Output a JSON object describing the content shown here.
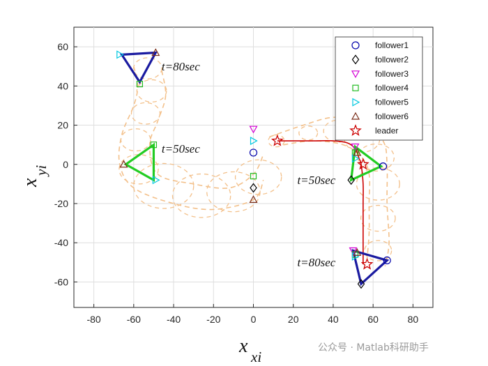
{
  "chart_data": {
    "type": "line",
    "title": "",
    "xlabel": {
      "base": "x",
      "sub": "xi"
    },
    "ylabel": {
      "base": "x",
      "sub": "yi"
    },
    "xlim": [
      -90,
      90
    ],
    "ylim": [
      -73,
      70
    ],
    "xticks": [
      -80,
      -60,
      -40,
      -20,
      0,
      20,
      40,
      60,
      80
    ],
    "yticks": [
      -60,
      -40,
      -20,
      0,
      20,
      40,
      60
    ],
    "grid": true,
    "legend": {
      "placement": "top-right",
      "entries": [
        {
          "name": "follower1",
          "marker": "circle",
          "color": "#0000aa"
        },
        {
          "name": "follower2",
          "marker": "diamond",
          "color": "#000000"
        },
        {
          "name": "follower3",
          "marker": "triangle-down",
          "color": "#d400d4"
        },
        {
          "name": "follower4",
          "marker": "square",
          "color": "#22bb22"
        },
        {
          "name": "follower5",
          "marker": "triangle-right",
          "color": "#00c8e0"
        },
        {
          "name": "follower6",
          "marker": "triangle-up",
          "color": "#7a2e1a"
        },
        {
          "name": "leader",
          "marker": "star",
          "color": "#cc0000"
        }
      ]
    },
    "leader_path": [
      [
        12,
        12
      ],
      [
        20,
        12
      ],
      [
        30,
        12
      ],
      [
        40,
        12
      ],
      [
        47,
        11
      ],
      [
        51,
        8
      ],
      [
        53,
        3
      ],
      [
        54,
        0
      ],
      [
        55,
        -10
      ],
      [
        55,
        -20
      ],
      [
        55,
        -30
      ],
      [
        55,
        -40
      ],
      [
        55,
        -51
      ]
    ],
    "leader_positions": [
      [
        12,
        12
      ],
      [
        55,
        0
      ],
      [
        57,
        -51
      ]
    ],
    "initial_positions": {
      "follower1": [
        0,
        6
      ],
      "follower2": [
        0,
        -12
      ],
      "follower3": [
        0,
        18
      ],
      "follower4": [
        0,
        -6
      ],
      "follower5": [
        0,
        12
      ],
      "follower6": [
        0,
        -18
      ]
    },
    "formations": [
      {
        "label": "t=50sec",
        "color": "#22cc22",
        "vertices": [
          [
            64,
            -1
          ],
          [
            49,
            -8
          ],
          [
            51,
            9
          ]
        ],
        "markers": {
          "follower1": [
            65,
            -1
          ],
          "follower2": [
            49,
            -8
          ],
          "follower3": [
            51,
            9
          ],
          "follower4": [
            51,
            6
          ],
          "follower5": [
            51,
            3
          ],
          "follower6": [
            52,
            6
          ]
        },
        "label_pos": [
          22,
          -10
        ]
      },
      {
        "label": "t=80sec",
        "color": "#1a1aa0",
        "vertices": [
          [
            67,
            -49
          ],
          [
            54,
            -61
          ],
          [
            50,
            -44
          ]
        ],
        "markers": {
          "follower1": [
            67,
            -49
          ],
          "follower2": [
            54,
            -61
          ],
          "follower3": [
            50,
            -44
          ],
          "follower4": [
            51,
            -46
          ],
          "follower5": [
            51,
            -47
          ],
          "follower6": [
            52,
            -45
          ]
        },
        "label_pos": [
          22,
          -52
        ]
      },
      {
        "label": "t=50sec",
        "color": "#22cc22",
        "vertices": [
          [
            -64,
            0
          ],
          [
            -50,
            10
          ],
          [
            -50,
            -8
          ]
        ],
        "markers": {
          "follower4": [
            -50,
            10
          ],
          "follower5": [
            -49,
            -8
          ],
          "follower6": [
            -65,
            0
          ]
        },
        "label_pos": [
          -46,
          6
        ]
      },
      {
        "label": "t=80sec",
        "color": "#1a1aa0",
        "vertices": [
          [
            -66,
            56
          ],
          [
            -49,
            57
          ],
          [
            -57,
            42
          ]
        ],
        "markers": {
          "follower4": [
            -57,
            41
          ],
          "follower5": [
            -67,
            56
          ],
          "follower6": [
            -49,
            57
          ]
        },
        "label_pos": [
          -46,
          48
        ]
      }
    ],
    "left_envelope": {
      "outer": [
        [
          -60,
          50
        ],
        [
          -58,
          40
        ],
        [
          -60,
          30
        ],
        [
          -66,
          15
        ],
        [
          -67,
          0
        ],
        [
          -60,
          -12
        ],
        [
          -40,
          -20
        ],
        [
          -20,
          -23
        ],
        [
          0,
          -18
        ],
        [
          5,
          -8
        ]
      ],
      "inner": [
        [
          -46,
          48
        ],
        [
          -44,
          35
        ],
        [
          -48,
          22
        ],
        [
          -52,
          10
        ],
        [
          -48,
          -5
        ],
        [
          -30,
          -10
        ],
        [
          -12,
          -12
        ],
        [
          0,
          -5
        ],
        [
          5,
          5
        ]
      ],
      "color": "#f3c08a"
    },
    "right_envelope": {
      "outer": [
        [
          8,
          14
        ],
        [
          25,
          20
        ],
        [
          40,
          24
        ],
        [
          55,
          22
        ],
        [
          65,
          12
        ],
        [
          67,
          0
        ],
        [
          67,
          -20
        ],
        [
          68,
          -40
        ],
        [
          66,
          -52
        ]
      ],
      "inner": [
        [
          15,
          10
        ],
        [
          30,
          12
        ],
        [
          45,
          10
        ],
        [
          54,
          4
        ],
        [
          58,
          -5
        ],
        [
          58,
          -20
        ],
        [
          58,
          -35
        ],
        [
          57,
          -48
        ]
      ],
      "color": "#f3c08a"
    }
  },
  "watermark": "公众号 · Matlab科研助手"
}
